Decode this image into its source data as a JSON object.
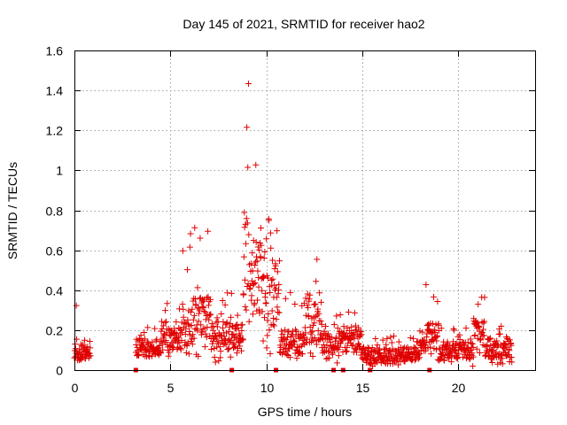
{
  "chart_data": {
    "type": "scatter",
    "title": "Day 145 of 2021, SRMTID for receiver hao2",
    "xlabel": "GPS time / hours",
    "ylabel": "SRMTID / TECUs",
    "xlim": [
      0,
      24
    ],
    "ylim": [
      0,
      1.6
    ],
    "xticks": [
      "0",
      "5",
      "10",
      "15",
      "20"
    ],
    "yticks": [
      "0",
      "0.2",
      "0.4",
      "0.6",
      "0.8",
      "1",
      "1.2",
      "1.4",
      "1.6"
    ],
    "grid": true,
    "marker": "plus",
    "series_color": "#e00000",
    "zero_markers_x": [
      3.2,
      8.2,
      10.5,
      13.5,
      14.0,
      15.4,
      18.5
    ],
    "segments": [
      [
        0.0,
        0.85,
        0.09,
        0.05,
        0.35
      ],
      [
        3.2,
        4.5,
        0.11,
        0.05,
        0.33
      ],
      [
        4.5,
        5.6,
        0.17,
        0.07,
        0.36
      ],
      [
        5.6,
        6.2,
        0.22,
        0.06,
        0.7
      ],
      [
        6.2,
        7.2,
        0.26,
        0.05,
        0.72
      ],
      [
        7.2,
        8.2,
        0.17,
        0.04,
        0.4
      ],
      [
        8.2,
        8.8,
        0.16,
        0.06,
        0.3
      ],
      [
        8.8,
        9.1,
        0.55,
        0.15,
        1.44
      ],
      [
        9.1,
        10.0,
        0.45,
        0.1,
        1.03
      ],
      [
        10.0,
        10.7,
        0.4,
        0.08,
        0.85
      ],
      [
        10.7,
        12.0,
        0.14,
        0.03,
        0.4
      ],
      [
        12.0,
        12.9,
        0.25,
        0.06,
        0.57
      ],
      [
        12.9,
        14.0,
        0.14,
        0.03,
        0.32
      ],
      [
        14.0,
        15.0,
        0.16,
        0.04,
        0.3
      ],
      [
        15.0,
        18.0,
        0.08,
        0.02,
        0.18
      ],
      [
        18.0,
        19.0,
        0.17,
        0.05,
        0.5
      ],
      [
        19.0,
        20.8,
        0.1,
        0.02,
        0.22
      ],
      [
        20.8,
        21.4,
        0.18,
        0.05,
        0.38
      ],
      [
        21.4,
        22.8,
        0.11,
        0.03,
        0.22
      ]
    ]
  }
}
